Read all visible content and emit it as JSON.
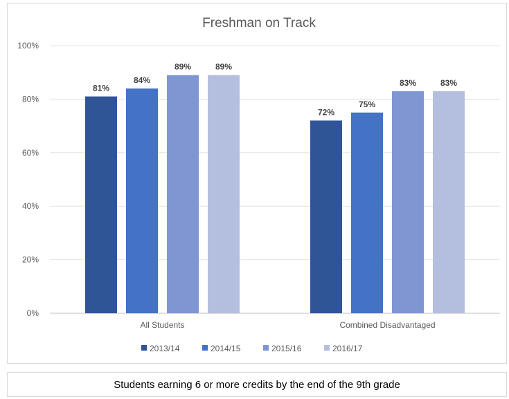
{
  "caption": "Students earning 6 or more credits by the end of the 9th grade",
  "chart_data": {
    "type": "bar",
    "title": "Freshman on Track",
    "xlabel": "",
    "ylabel": "",
    "categories": [
      "All Students",
      "Combined Disadvantaged"
    ],
    "series": [
      {
        "name": "2013/14",
        "color": "#2f5597",
        "values": [
          81,
          72
        ],
        "labels": [
          "81%",
          "72%"
        ]
      },
      {
        "name": "2014/15",
        "color": "#4472c4",
        "values": [
          84,
          75
        ],
        "labels": [
          "84%",
          "75%"
        ]
      },
      {
        "name": "2015/16",
        "color": "#7f96d2",
        "values": [
          89,
          83
        ],
        "labels": [
          "89%",
          "83%"
        ]
      },
      {
        "name": "2016/17",
        "color": "#b4bfe0",
        "values": [
          89,
          83
        ],
        "labels": [
          "89%",
          "83%"
        ]
      }
    ],
    "ylim": [
      0,
      100
    ],
    "yticks": [
      0,
      20,
      40,
      60,
      80,
      100
    ],
    "ytick_labels": [
      "0%",
      "20%",
      "40%",
      "60%",
      "80%",
      "100%"
    ],
    "grid": true,
    "legend_position": "bottom"
  }
}
